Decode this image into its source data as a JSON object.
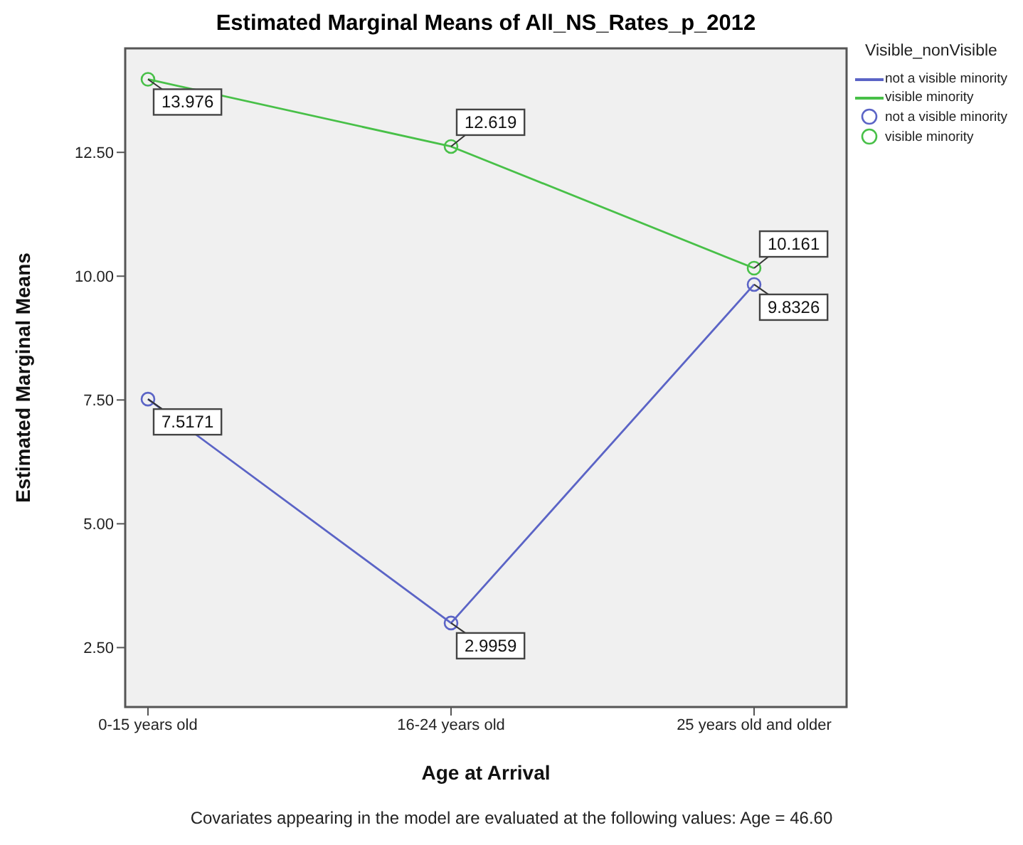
{
  "chart_data": {
    "type": "line",
    "title": "Estimated Marginal Means of All_NS_Rates_p_2012",
    "xlabel": "Age at Arrival",
    "ylabel": "Estimated Marginal Means",
    "legend_title": "Visible_nonVisible",
    "legend": "right",
    "marker": "circle",
    "data_labels": true,
    "categories": [
      "0-15 years old",
      "16-24 years old",
      "25 years old and older"
    ],
    "series": [
      {
        "name": "not a visible minority",
        "color": "#5b64c6",
        "values": [
          7.5171,
          2.9959,
          9.8326
        ]
      },
      {
        "name": "visible minority",
        "color": "#48c048",
        "values": [
          13.976,
          12.619,
          10.161
        ]
      }
    ],
    "ylim": [
      1.3,
      14.6
    ],
    "yticks": [
      {
        "value": 2.5,
        "label": "2.50"
      },
      {
        "value": 5,
        "label": "5.00"
      },
      {
        "value": 7.5,
        "label": "7.50"
      },
      {
        "value": 10,
        "label": "10.00"
      },
      {
        "value": 12.5,
        "label": "12.50"
      }
    ],
    "annotations": [
      "Covariates appearing in the model are evaluated at the following values: Age = 46.60"
    ]
  }
}
